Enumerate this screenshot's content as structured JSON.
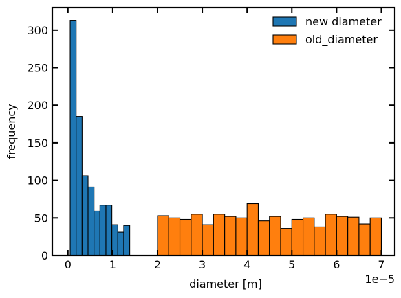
{
  "chart_data": {
    "type": "bar",
    "title": "",
    "xlabel": "diameter [m]",
    "ylabel": "frequency",
    "x_offset_label": "1e−5",
    "xlim": [
      -0.35,
      7.3
    ],
    "ylim": [
      0,
      330
    ],
    "x_ticks": [
      0,
      1,
      2,
      3,
      4,
      5,
      6,
      7
    ],
    "y_ticks": [
      0,
      50,
      100,
      150,
      200,
      250,
      300
    ],
    "grid": false,
    "legend_position": "top-right",
    "series": [
      {
        "name": "new diameter",
        "color": "#1f77b4",
        "bin_width": 0.133,
        "bin_starts": [
          0.05,
          0.183,
          0.316,
          0.449,
          0.582,
          0.715,
          0.848,
          0.981,
          1.114,
          1.247
        ],
        "values": [
          313,
          185,
          106,
          91,
          59,
          67,
          67,
          41,
          31,
          40
        ]
      },
      {
        "name": "old_diameter",
        "color": "#ff7f0e",
        "bin_width": 0.25,
        "bin_starts": [
          2.0,
          2.25,
          2.5,
          2.75,
          3.0,
          3.25,
          3.5,
          3.75,
          4.0,
          4.25,
          4.5,
          4.75,
          5.0,
          5.25,
          5.5,
          5.75,
          6.0,
          6.25,
          6.5,
          6.75
        ],
        "values": [
          53,
          50,
          48,
          55,
          41,
          55,
          52,
          50,
          69,
          46,
          52,
          36,
          48,
          50,
          38,
          55,
          52,
          51,
          42,
          50
        ]
      }
    ]
  }
}
